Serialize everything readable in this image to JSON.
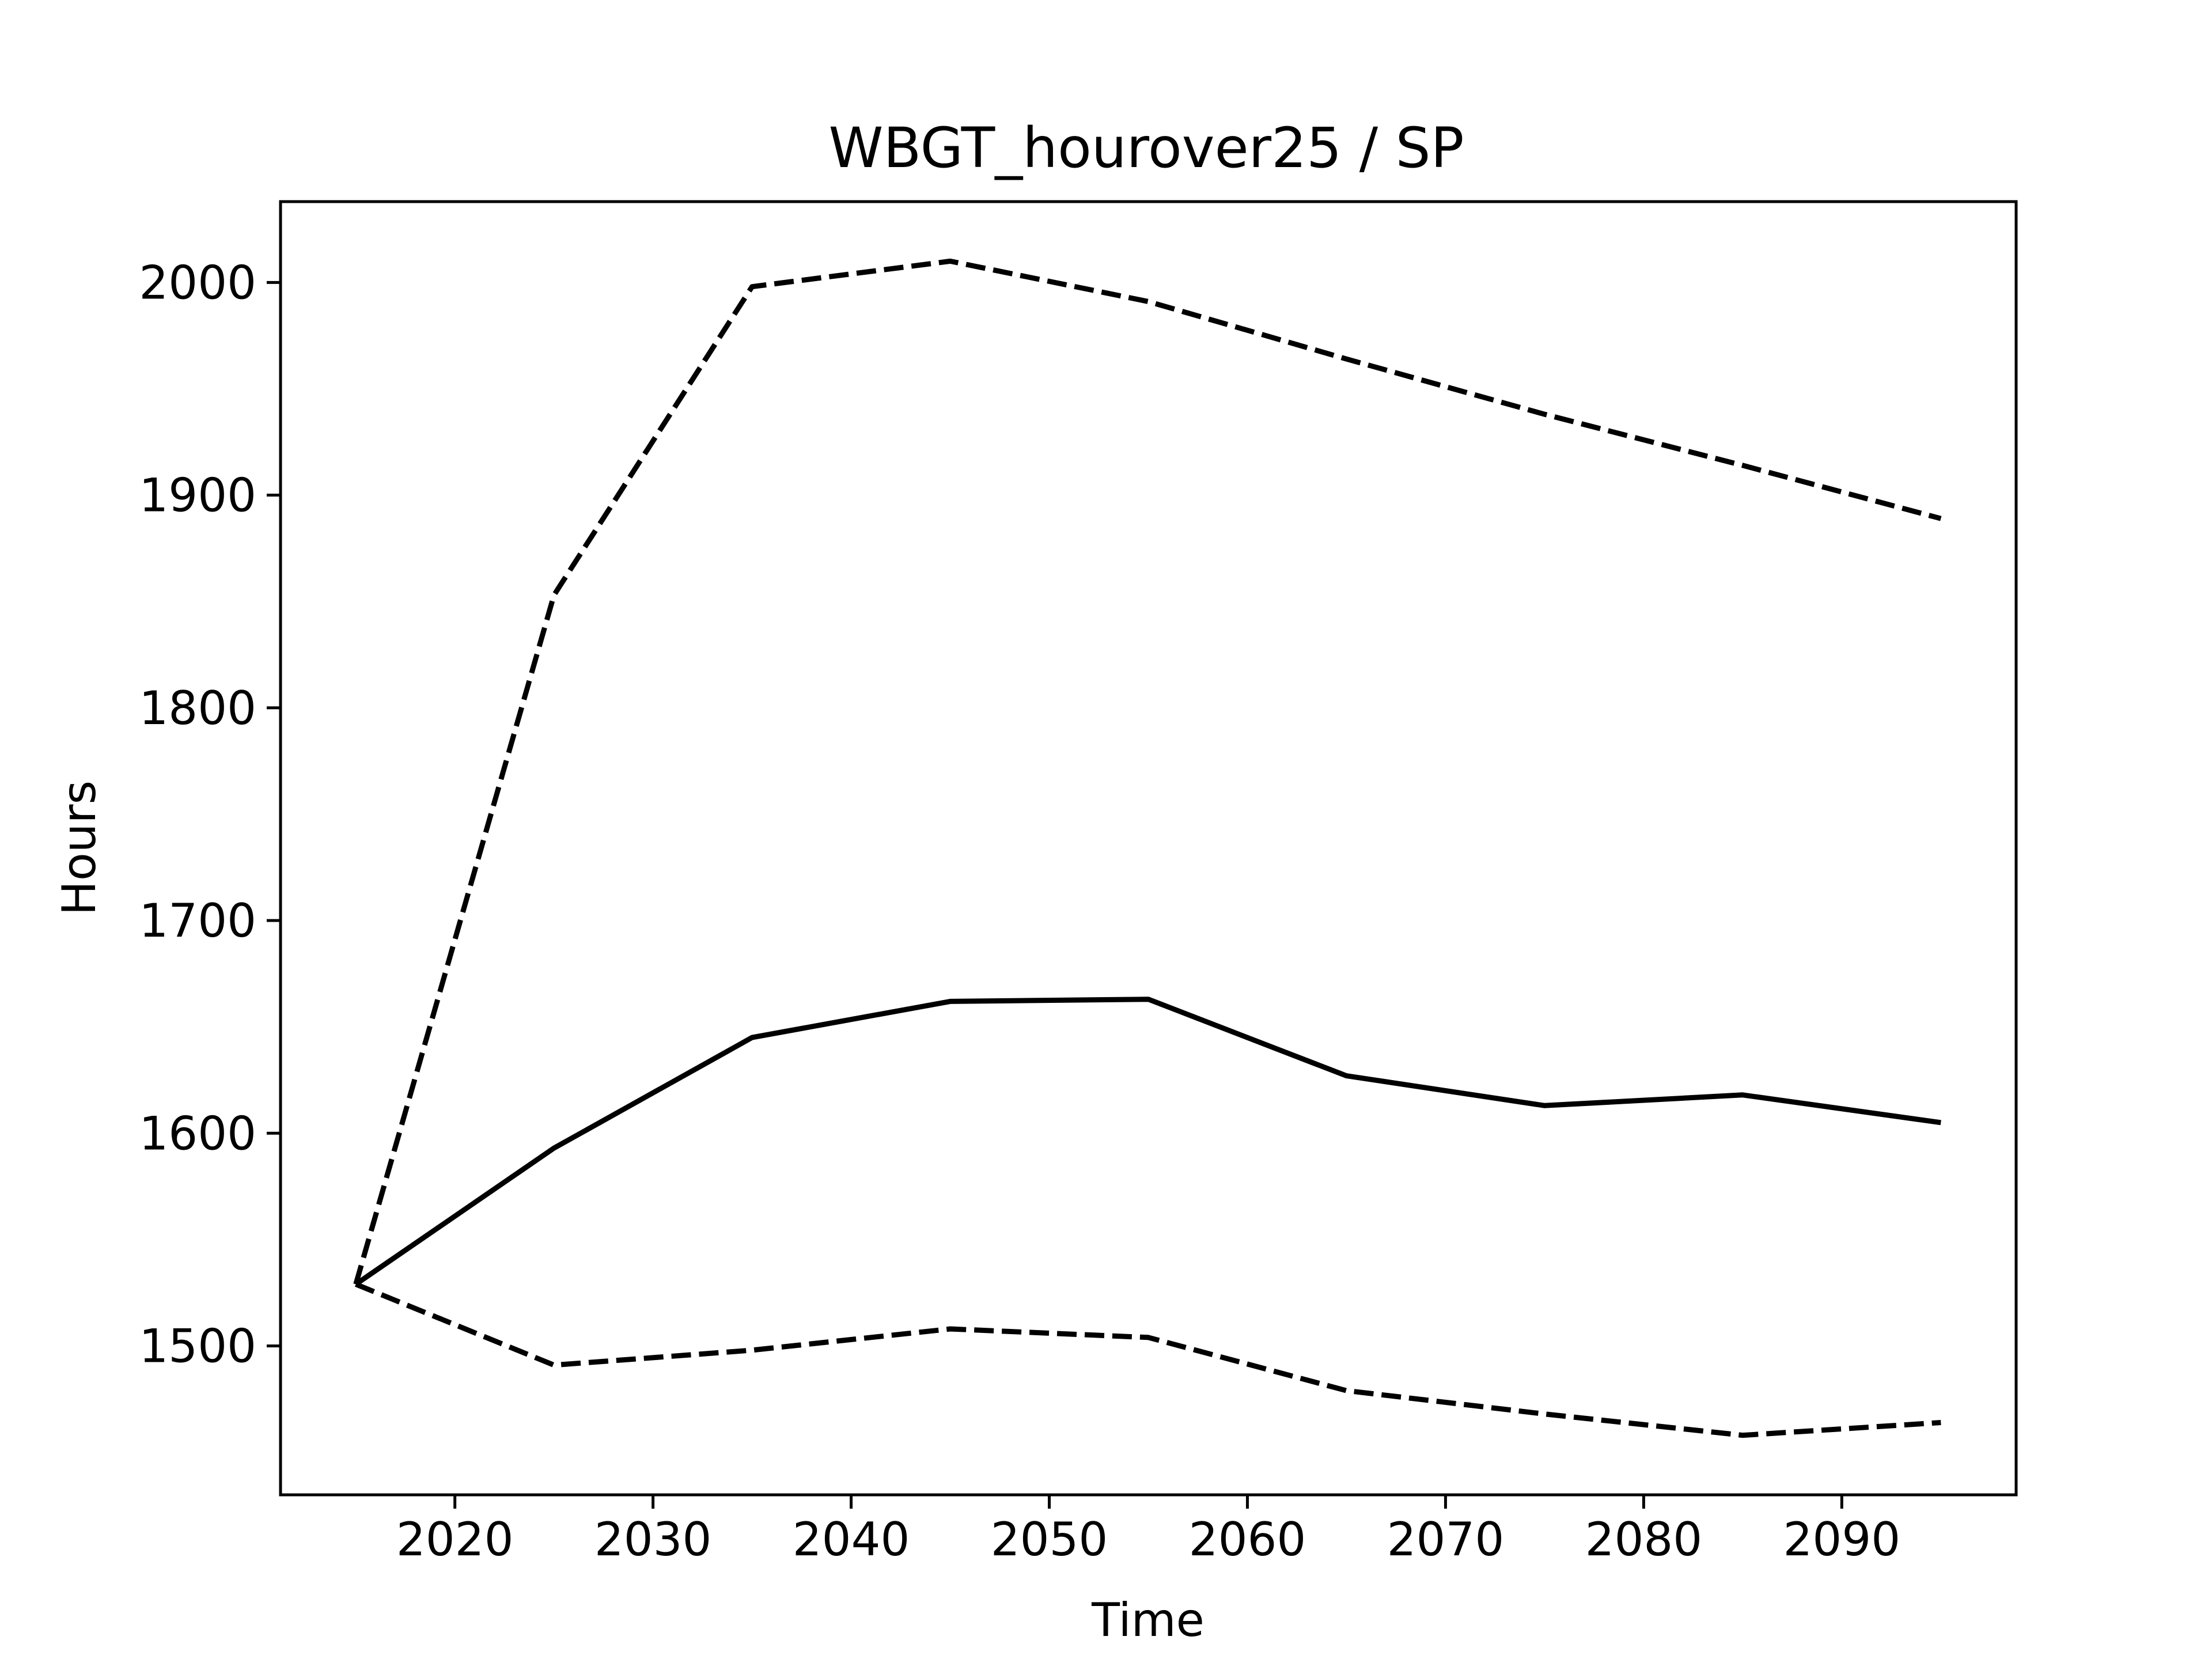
{
  "chart_data": {
    "type": "line",
    "title": "WBGT_hourover25 / SP",
    "xlabel": "Time",
    "ylabel": "Hours",
    "xlim": [
      2011.2,
      2098.8
    ],
    "ylim": [
      1430,
      2038
    ],
    "xticks": [
      2020,
      2030,
      2040,
      2050,
      2060,
      2070,
      2080,
      2090
    ],
    "yticks": [
      1500,
      1600,
      1700,
      1800,
      1900,
      2000
    ],
    "grid": false,
    "legend": "none",
    "x": [
      2015,
      2025,
      2035,
      2045,
      2055,
      2065,
      2075,
      2085,
      2095
    ],
    "series": [
      {
        "style": "solid",
        "color": "#000000",
        "values": [
          1529,
          1593,
          1645,
          1662,
          1663,
          1627,
          1613,
          1618,
          1605
        ]
      },
      {
        "style": "dashed",
        "color": "#000000",
        "values": [
          1529,
          1853,
          1998,
          2010,
          1991,
          1964,
          1938,
          1914,
          1889
        ]
      },
      {
        "style": "dashed",
        "color": "#000000",
        "values": [
          1529,
          1491,
          1498,
          1508,
          1504,
          1479,
          1468,
          1458,
          1464
        ]
      }
    ]
  }
}
